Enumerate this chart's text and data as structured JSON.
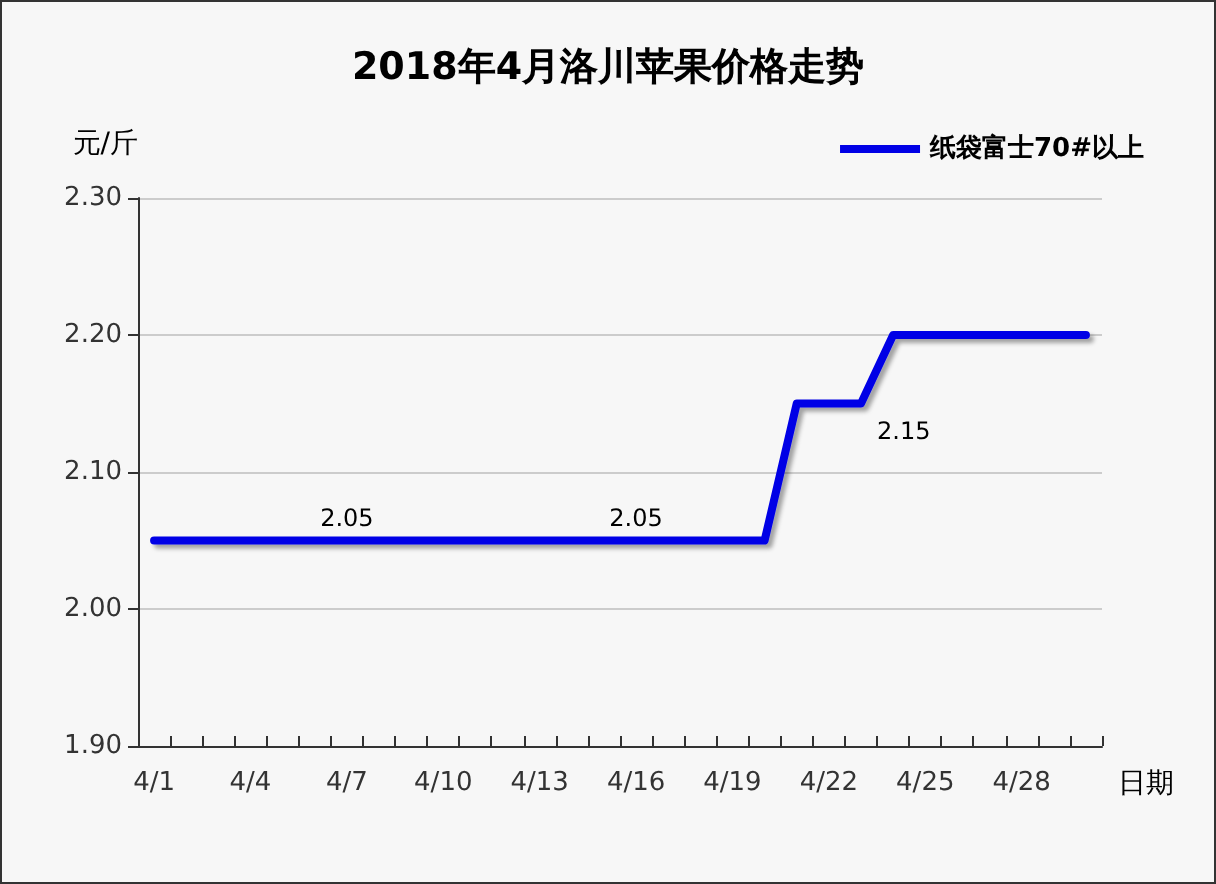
{
  "chart_data": {
    "type": "line",
    "title": "2018年4月洛川苹果价格走势",
    "xlabel": "日期",
    "ylabel": "元/斤",
    "categories": [
      "4/1",
      null,
      null,
      "4/4",
      null,
      null,
      "4/7",
      null,
      null,
      "4/10",
      null,
      null,
      "4/13",
      null,
      null,
      "4/16",
      null,
      null,
      "4/19",
      null,
      null,
      "4/22",
      null,
      null,
      "4/25",
      null,
      null,
      "4/28",
      null,
      null
    ],
    "series": [
      {
        "name": "纸袋富士70#以上",
        "color": "#0000e6",
        "values": [
          2.05,
          2.05,
          2.05,
          2.05,
          2.05,
          2.05,
          2.05,
          2.05,
          2.05,
          2.05,
          2.05,
          2.05,
          2.05,
          2.05,
          2.05,
          2.05,
          2.05,
          2.05,
          2.05,
          2.05,
          2.15,
          2.15,
          2.15,
          2.2,
          2.2,
          2.2,
          2.2,
          2.2,
          2.2,
          2.2
        ],
        "value_labels": [
          null,
          null,
          null,
          null,
          null,
          null,
          "2.05",
          null,
          null,
          null,
          null,
          null,
          null,
          null,
          null,
          "2.05",
          null,
          null,
          null,
          null,
          null,
          null,
          "2.15",
          null,
          null,
          null,
          null,
          null,
          null,
          null
        ]
      }
    ],
    "ylim": [
      1.9,
      2.3
    ],
    "yticks": [
      {
        "value": 1.9,
        "label": "1.90"
      },
      {
        "value": 2.0,
        "label": "2.00"
      },
      {
        "value": 2.1,
        "label": "2.10"
      },
      {
        "value": 2.2,
        "label": "2.20"
      },
      {
        "value": 2.3,
        "label": "2.30"
      }
    ],
    "grid": "y",
    "legend": "top right",
    "marker": "none",
    "line_style": "solid"
  }
}
